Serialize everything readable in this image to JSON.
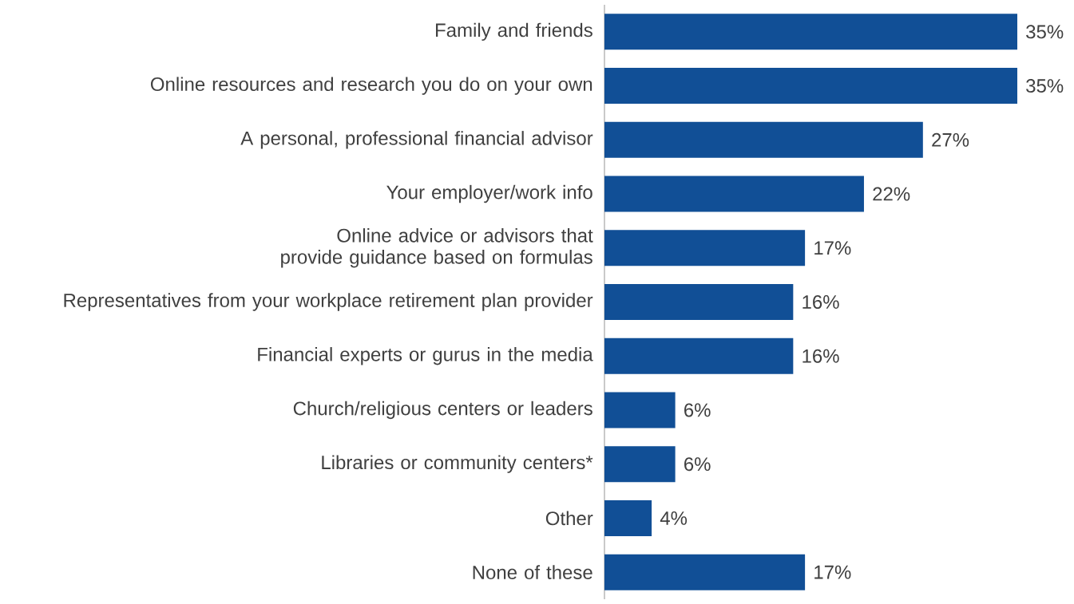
{
  "chart_data": {
    "type": "bar",
    "orientation": "horizontal",
    "color": "#114f96",
    "categories": [
      "Family and friends",
      "Online resources and research you do on your own",
      "A personal, professional financial advisor",
      "Your employer/work info",
      "Online advice or advisors that provide guidance based on formulas",
      "Representatives from your workplace retirement plan provider",
      "Financial experts or gurus in the media",
      "Church/religious centers or leaders",
      "Libraries or community centers*",
      "Other",
      "None of these"
    ],
    "values": [
      35,
      35,
      27,
      22,
      17,
      16,
      16,
      6,
      6,
      4,
      17
    ],
    "value_labels": [
      "35%",
      "35%",
      "27%",
      "22%",
      "17%",
      "16%",
      "16%",
      "6%",
      "6%",
      "4%",
      "17%"
    ]
  }
}
